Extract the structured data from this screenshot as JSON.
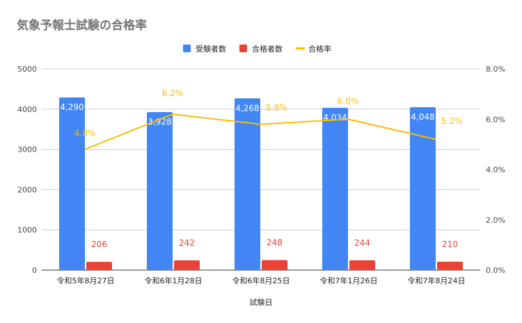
{
  "chart_data": {
    "type": "bar+line",
    "title": "気象予報士試験の合格率",
    "xlabel": "試験日",
    "categories": [
      "令和5年8月27日",
      "令和6年1月28日",
      "令和6年8月25日",
      "令和7年1月26日",
      "令和7年8月24日"
    ],
    "series": [
      {
        "name": "受験者数",
        "type": "bar",
        "axis": "left",
        "color": "#4285f4",
        "values": [
          4290,
          3928,
          4268,
          4034,
          4048
        ],
        "labels": [
          "4,290",
          "3,928",
          "4,268",
          "4,034",
          "4,048"
        ]
      },
      {
        "name": "合格者数",
        "type": "bar",
        "axis": "left",
        "color": "#ea4335",
        "values": [
          206,
          242,
          248,
          244,
          210
        ],
        "labels": [
          "206",
          "242",
          "248",
          "244",
          "210"
        ]
      },
      {
        "name": "合格率",
        "type": "line",
        "axis": "right",
        "color": "#fbbc04",
        "values": [
          4.8,
          6.2,
          5.8,
          6.0,
          5.2
        ],
        "labels": [
          "4.8%",
          "6.2%",
          "5.8%",
          "6.0%",
          "5.2%"
        ]
      }
    ],
    "ylim_left": [
      0,
      5000
    ],
    "yticks_left": [
      "0",
      "1000",
      "2000",
      "3000",
      "4000",
      "5000"
    ],
    "ylim_right": [
      0,
      8
    ],
    "yticks_right": [
      "0.0%",
      "2.0%",
      "4.0%",
      "6.0%",
      "8.0%"
    ],
    "grid": true,
    "legend": "top"
  }
}
